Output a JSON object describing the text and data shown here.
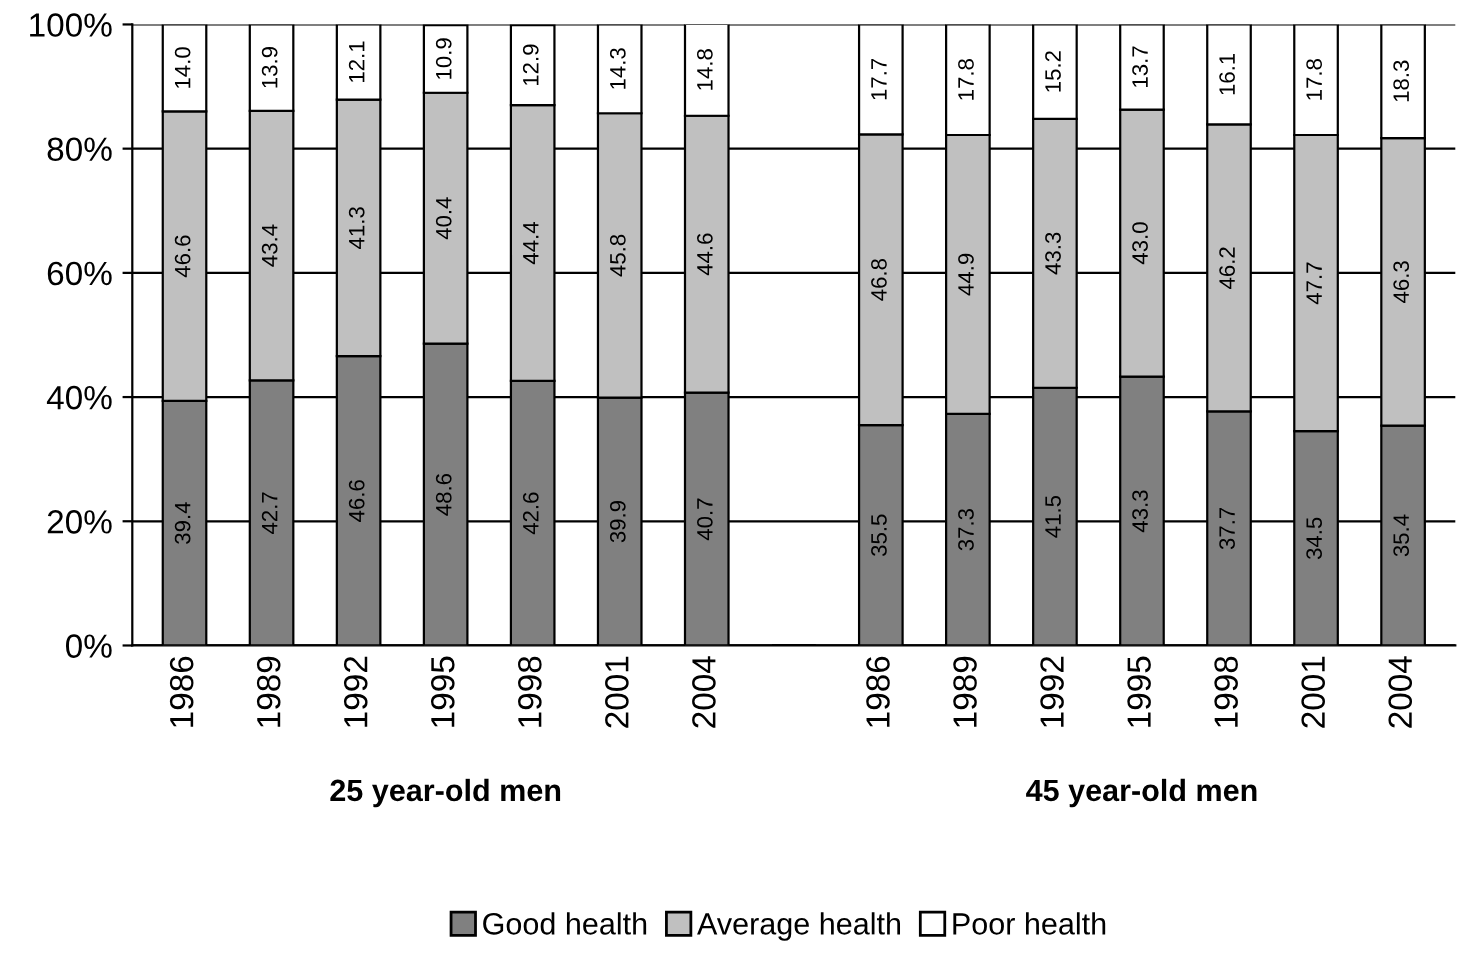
{
  "chart_data": {
    "type": "bar",
    "stacked": true,
    "categories": [
      "1986",
      "1989",
      "1992",
      "1995",
      "1998",
      "2001",
      "2004",
      null,
      "1986",
      "1989",
      "1992",
      "1995",
      "1998",
      "2001",
      "2004"
    ],
    "series": [
      {
        "name": "Good health",
        "color": "#808080",
        "values": [
          39.4,
          42.7,
          46.6,
          48.6,
          42.6,
          39.9,
          40.7,
          null,
          35.5,
          37.3,
          41.5,
          43.3,
          37.7,
          34.5,
          35.4
        ],
        "value_labels": [
          "39.4",
          "42.7",
          "46.6",
          "48.6",
          "42.6",
          "39.9",
          "40.7",
          null,
          "35.5",
          "37.3",
          "41.5",
          "43.3",
          "37.7",
          "34.5",
          "35.4"
        ]
      },
      {
        "name": "Average health",
        "color": "#c0c0c0",
        "values": [
          46.6,
          43.4,
          41.3,
          40.4,
          44.4,
          45.8,
          44.6,
          null,
          46.8,
          44.9,
          43.3,
          43,
          46.2,
          47.7,
          46.3
        ],
        "value_labels": [
          "46.6",
          "43.4",
          "41.3",
          "40.4",
          "44.4",
          "45.8",
          "44.6",
          null,
          "46.8",
          "44.9",
          "43.3",
          "43.0",
          "46.2",
          "47.7",
          "46.3"
        ]
      },
      {
        "name": "Poor health",
        "color": "#ffffff",
        "values": [
          14,
          13.9,
          12.1,
          10.9,
          12.9,
          14.3,
          14.8,
          null,
          17.7,
          17.8,
          15.2,
          13.7,
          16.1,
          17.8,
          18.3
        ],
        "value_labels": [
          "14.0",
          "13.9",
          "12.1",
          "10.9",
          "12.9",
          "14.3",
          "14.8",
          null,
          "17.7",
          "17.8",
          "15.2",
          "13.7",
          "16.1",
          "17.8",
          "18.3"
        ]
      }
    ],
    "ylim": [
      0,
      100
    ],
    "yticks": [
      {
        "value": 0,
        "label": "0%"
      },
      {
        "value": 20,
        "label": "20%"
      },
      {
        "value": 40,
        "label": "40%"
      },
      {
        "value": 60,
        "label": "60%"
      },
      {
        "value": 80,
        "label": "80%"
      },
      {
        "value": 100,
        "label": "100%"
      }
    ],
    "grid": "y",
    "legend": "bottom",
    "annotations": [
      "25 year-old men",
      "45 year-old men"
    ]
  }
}
